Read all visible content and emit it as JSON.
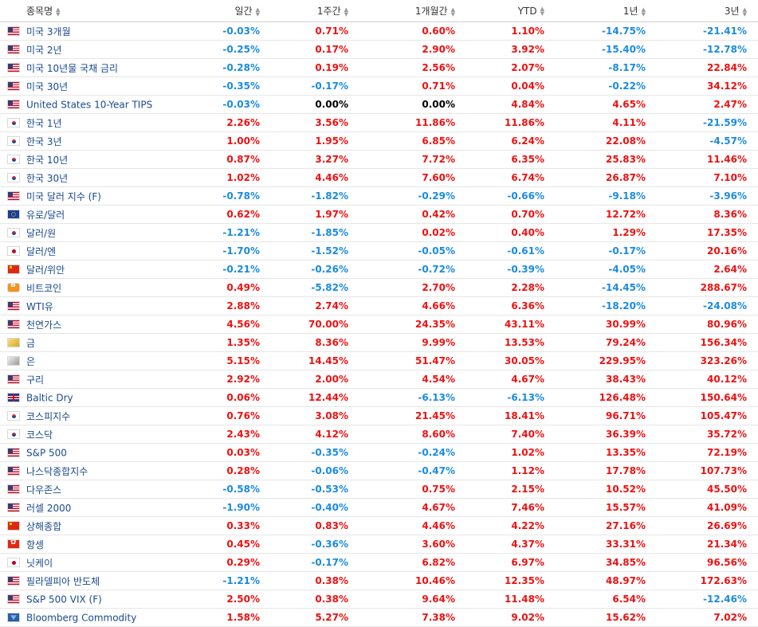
{
  "headers": {
    "name": "종목명",
    "d1": "일간",
    "w1": "1주간",
    "m1": "1개월간",
    "ytd": "YTD",
    "y1": "1년",
    "y3": "3년"
  },
  "rows": [
    {
      "flag": "us",
      "name": "미국 3개월",
      "d1": "-0.03%",
      "w1": "0.71%",
      "m1": "0.60%",
      "ytd": "1.10%",
      "y1": "-14.75%",
      "y3": "-21.41%"
    },
    {
      "flag": "us",
      "name": "미국 2년",
      "d1": "-0.25%",
      "w1": "0.17%",
      "m1": "2.90%",
      "ytd": "3.92%",
      "y1": "-15.40%",
      "y3": "-12.78%"
    },
    {
      "flag": "us",
      "name": "미국 10년물 국채 금리",
      "d1": "-0.28%",
      "w1": "0.19%",
      "m1": "2.56%",
      "ytd": "2.07%",
      "y1": "-8.17%",
      "y3": "22.84%"
    },
    {
      "flag": "us",
      "name": "미국 30년",
      "d1": "-0.35%",
      "w1": "-0.17%",
      "m1": "0.71%",
      "ytd": "0.04%",
      "y1": "-0.22%",
      "y3": "34.12%"
    },
    {
      "flag": "us",
      "name": "United States 10-Year TIPS",
      "d1": "-0.03%",
      "w1": "0.00%",
      "m1": "0.00%",
      "ytd": "4.84%",
      "y1": "4.65%",
      "y3": "2.47%"
    },
    {
      "flag": "kr",
      "name": "한국 1년",
      "d1": "2.26%",
      "w1": "3.56%",
      "m1": "11.86%",
      "ytd": "11.86%",
      "y1": "4.11%",
      "y3": "-21.59%"
    },
    {
      "flag": "kr",
      "name": "한국 3년",
      "d1": "1.00%",
      "w1": "1.95%",
      "m1": "6.85%",
      "ytd": "6.24%",
      "y1": "22.08%",
      "y3": "-4.57%"
    },
    {
      "flag": "kr",
      "name": "한국 10년",
      "d1": "0.87%",
      "w1": "3.27%",
      "m1": "7.72%",
      "ytd": "6.35%",
      "y1": "25.83%",
      "y3": "11.46%"
    },
    {
      "flag": "kr",
      "name": "한국 30년",
      "d1": "1.02%",
      "w1": "4.46%",
      "m1": "7.60%",
      "ytd": "6.74%",
      "y1": "26.87%",
      "y3": "7.10%"
    },
    {
      "flag": "us",
      "name": "미국 달러 지수 (F)",
      "d1": "-0.78%",
      "w1": "-1.82%",
      "m1": "-0.29%",
      "ytd": "-0.66%",
      "y1": "-9.18%",
      "y3": "-3.96%"
    },
    {
      "flag": "eu",
      "name": "유로/달러",
      "d1": "0.62%",
      "w1": "1.97%",
      "m1": "0.42%",
      "ytd": "0.70%",
      "y1": "12.72%",
      "y3": "8.36%"
    },
    {
      "flag": "kr",
      "name": "달러/원",
      "d1": "-1.21%",
      "w1": "-1.85%",
      "m1": "0.02%",
      "ytd": "0.40%",
      "y1": "1.29%",
      "y3": "17.35%"
    },
    {
      "flag": "jp",
      "name": "달러/엔",
      "d1": "-1.70%",
      "w1": "-1.52%",
      "m1": "-0.05%",
      "ytd": "-0.61%",
      "y1": "-0.17%",
      "y3": "20.16%"
    },
    {
      "flag": "cn",
      "name": "달러/위안",
      "d1": "-0.21%",
      "w1": "-0.26%",
      "m1": "-0.72%",
      "ytd": "-0.39%",
      "y1": "-4.05%",
      "y3": "2.64%"
    },
    {
      "flag": "btc",
      "name": "비트코인",
      "d1": "0.49%",
      "w1": "-5.82%",
      "m1": "2.70%",
      "ytd": "2.28%",
      "y1": "-14.45%",
      "y3": "288.67%"
    },
    {
      "flag": "us",
      "name": "WTI유",
      "d1": "2.88%",
      "w1": "2.74%",
      "m1": "4.66%",
      "ytd": "6.36%",
      "y1": "-18.20%",
      "y3": "-24.08%"
    },
    {
      "flag": "us",
      "name": "천연가스",
      "d1": "4.56%",
      "w1": "70.00%",
      "m1": "24.35%",
      "ytd": "43.11%",
      "y1": "30.99%",
      "y3": "80.96%"
    },
    {
      "flag": "gold",
      "name": "금",
      "d1": "1.35%",
      "w1": "8.36%",
      "m1": "9.99%",
      "ytd": "13.53%",
      "y1": "79.24%",
      "y3": "156.34%"
    },
    {
      "flag": "silver",
      "name": "은",
      "d1": "5.15%",
      "w1": "14.45%",
      "m1": "51.47%",
      "ytd": "30.05%",
      "y1": "229.95%",
      "y3": "323.26%"
    },
    {
      "flag": "us",
      "name": "구리",
      "d1": "2.92%",
      "w1": "2.00%",
      "m1": "4.54%",
      "ytd": "4.67%",
      "y1": "38.43%",
      "y3": "40.12%"
    },
    {
      "flag": "uk",
      "name": "Baltic Dry",
      "d1": "0.06%",
      "w1": "12.44%",
      "m1": "-6.13%",
      "ytd": "-6.13%",
      "y1": "126.48%",
      "y3": "150.64%"
    },
    {
      "flag": "kr",
      "name": "코스피지수",
      "d1": "0.76%",
      "w1": "3.08%",
      "m1": "21.45%",
      "ytd": "18.41%",
      "y1": "96.71%",
      "y3": "105.47%"
    },
    {
      "flag": "kr",
      "name": "코스닥",
      "d1": "2.43%",
      "w1": "4.12%",
      "m1": "8.60%",
      "ytd": "7.40%",
      "y1": "36.39%",
      "y3": "35.72%"
    },
    {
      "flag": "us",
      "name": "S&P 500",
      "d1": "0.03%",
      "w1": "-0.35%",
      "m1": "-0.24%",
      "ytd": "1.02%",
      "y1": "13.35%",
      "y3": "72.19%"
    },
    {
      "flag": "us",
      "name": "나스닥종합지수",
      "d1": "0.28%",
      "w1": "-0.06%",
      "m1": "-0.47%",
      "ytd": "1.12%",
      "y1": "17.78%",
      "y3": "107.73%"
    },
    {
      "flag": "us",
      "name": "다우존스",
      "d1": "-0.58%",
      "w1": "-0.53%",
      "m1": "0.75%",
      "ytd": "2.15%",
      "y1": "10.52%",
      "y3": "45.50%"
    },
    {
      "flag": "us",
      "name": "러셀 2000",
      "d1": "-1.90%",
      "w1": "-0.40%",
      "m1": "4.67%",
      "ytd": "7.46%",
      "y1": "15.57%",
      "y3": "41.09%"
    },
    {
      "flag": "cn",
      "name": "상해종합",
      "d1": "0.33%",
      "w1": "0.83%",
      "m1": "4.46%",
      "ytd": "4.22%",
      "y1": "27.16%",
      "y3": "26.69%"
    },
    {
      "flag": "hk",
      "name": "항셍",
      "d1": "0.45%",
      "w1": "-0.36%",
      "m1": "3.60%",
      "ytd": "4.37%",
      "y1": "33.31%",
      "y3": "21.34%"
    },
    {
      "flag": "jp",
      "name": "닛케이",
      "d1": "0.29%",
      "w1": "-0.17%",
      "m1": "6.82%",
      "ytd": "6.97%",
      "y1": "34.85%",
      "y3": "96.56%"
    },
    {
      "flag": "us",
      "name": "필라델피아 반도체",
      "d1": "-1.21%",
      "w1": "0.38%",
      "m1": "10.46%",
      "ytd": "12.35%",
      "y1": "48.97%",
      "y3": "172.63%"
    },
    {
      "flag": "us",
      "name": "S&P 500 VIX (F)",
      "d1": "2.50%",
      "w1": "0.38%",
      "m1": "9.64%",
      "ytd": "11.48%",
      "y1": "6.54%",
      "y3": "-12.46%"
    },
    {
      "flag": "bcom",
      "name": "Bloomberg Commodity",
      "d1": "1.58%",
      "w1": "5.27%",
      "m1": "7.38%",
      "ytd": "9.02%",
      "y1": "15.62%",
      "y3": "7.02%"
    }
  ]
}
